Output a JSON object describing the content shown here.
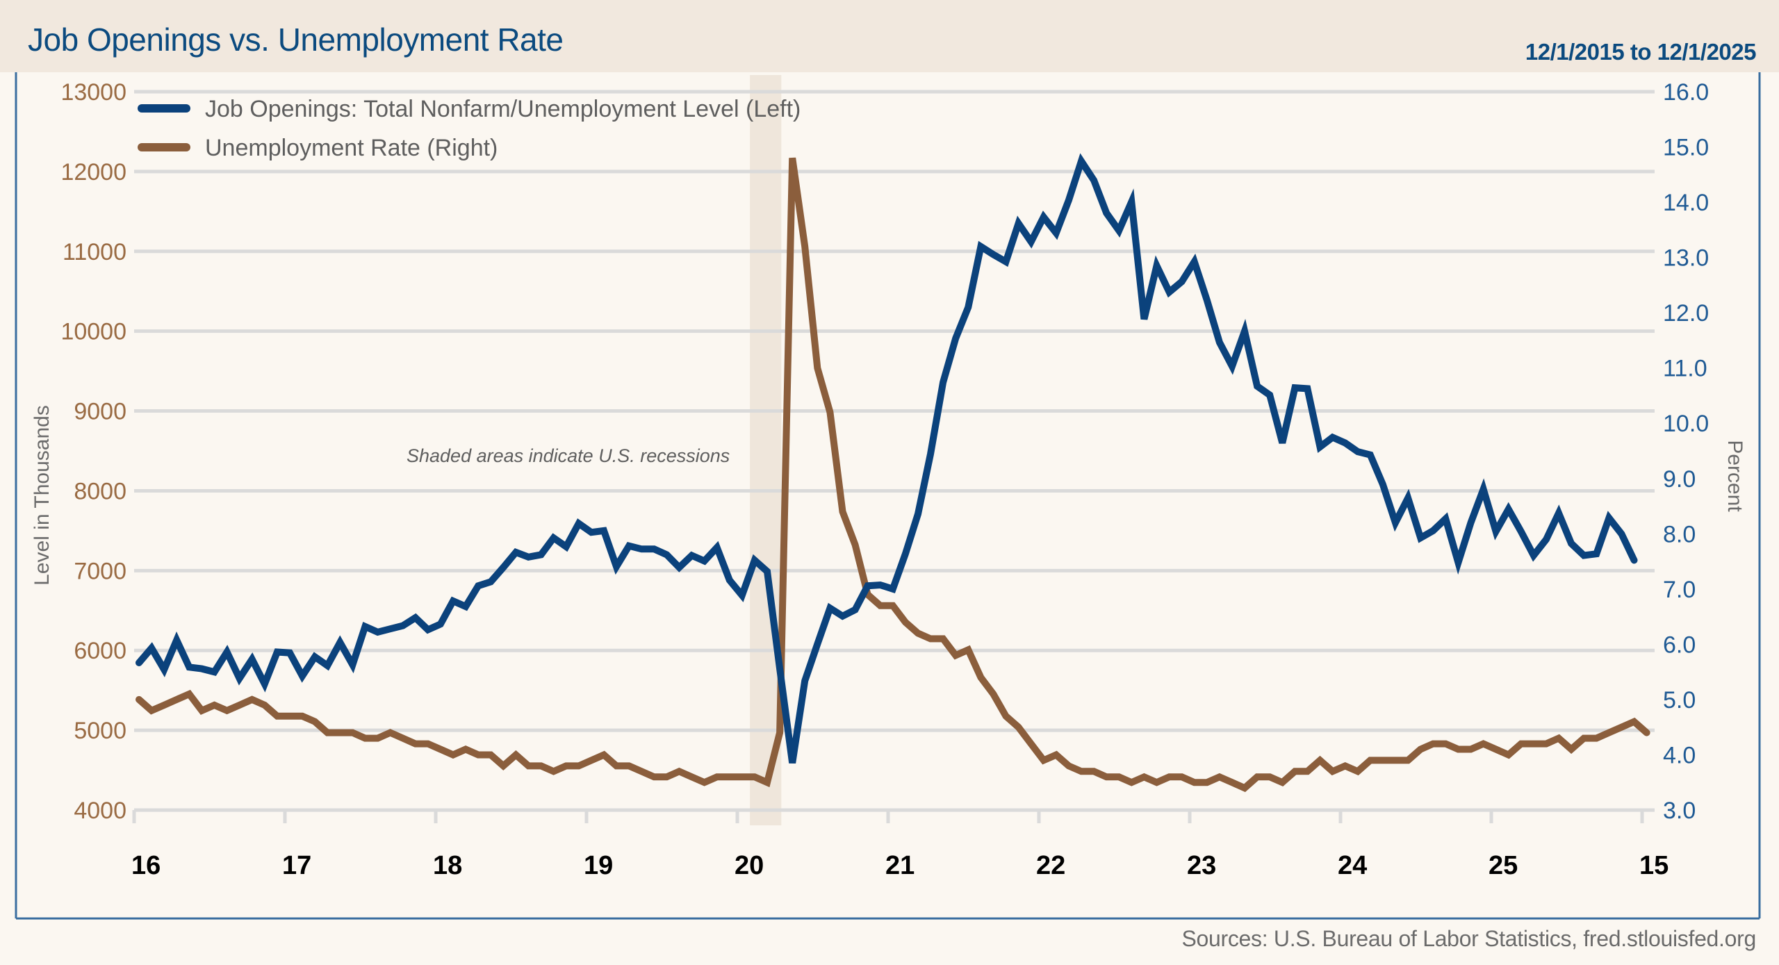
{
  "header": {
    "title": "Job Openings vs. Unemployment Rate",
    "date_range": "12/1/2015 to 12/1/2025"
  },
  "footer": {
    "sources": "Sources: U.S. Bureau of Labor Statistics, fred.stlouisfed.org"
  },
  "colors": {
    "job_openings": "#0B427C",
    "unemployment_rate": "#8B5E3C",
    "left_axis": "#9A6B43",
    "right_axis": "#1F5A94",
    "grid": "#DADADA",
    "recession": "#EFE6DB",
    "frame": "#3A6EA0"
  },
  "chart_data": {
    "type": "line",
    "title": "Job Openings vs. Unemployment Rate",
    "subtitle": "12/1/2015 to 12/1/2025",
    "ylabel_left": "Level in Thousands",
    "ylabel_right": "Percent",
    "ylim_left": [
      4000,
      13000
    ],
    "ylim_right": [
      3.0,
      16.0
    ],
    "yticks_left": [
      "4000",
      "5000",
      "6000",
      "7000",
      "8000",
      "9000",
      "10000",
      "11000",
      "12000",
      "13000"
    ],
    "yticks_right": [
      "3.0",
      "4.0",
      "5.0",
      "6.0",
      "7.0",
      "8.0",
      "9.0",
      "10.0",
      "11.0",
      "12.0",
      "13.0",
      "14.0",
      "15.0",
      "16.0"
    ],
    "xticks": [
      "16",
      "17",
      "18",
      "19",
      "20",
      "21",
      "22",
      "23",
      "24",
      "25",
      "15"
    ],
    "grid": true,
    "legend_position": "top-left",
    "annotation": "Shaded areas indicate U.S. recessions",
    "recessions": [
      {
        "start": "2020-02",
        "end": "2020-04"
      }
    ],
    "series": [
      {
        "name": "Job Openings: Total Nonfarm/Unemployment Level (Left)",
        "axis": "left",
        "start": "2015-12",
        "frequency": "monthly",
        "values": [
          5845,
          6030,
          5760,
          6130,
          5790,
          5770,
          5730,
          5980,
          5650,
          5890,
          5580,
          5980,
          5970,
          5680,
          5920,
          5810,
          6100,
          5820,
          6300,
          6230,
          6270,
          6310,
          6410,
          6260,
          6330,
          6620,
          6550,
          6810,
          6860,
          7040,
          7230,
          7170,
          7200,
          7410,
          7300,
          7590,
          7480,
          7500,
          7050,
          7310,
          7270,
          7270,
          7200,
          7040,
          7190,
          7120,
          7290,
          6880,
          6690,
          7130,
          6990,
          5770,
          4590,
          5620,
          6080,
          6530,
          6430,
          6510,
          6810,
          6820,
          6770,
          7210,
          7710,
          8460,
          9360,
          9910,
          10300,
          11060,
          10960,
          10870,
          11350,
          11120,
          11430,
          11230,
          11640,
          12130,
          11890,
          11480,
          11260,
          11620,
          10150,
          10820,
          10490,
          10620,
          10870,
          10390,
          9860,
          9560,
          10000,
          9310,
          9200,
          8600,
          9290,
          9280,
          8550,
          8670,
          8600,
          8490,
          8450,
          8080,
          7600,
          7910,
          7410,
          7500,
          7650,
          7100,
          7600,
          8020,
          7490,
          7770,
          7490,
          7190,
          7390,
          7720,
          7340,
          7190,
          7210,
          7660,
          7460,
          7130
        ]
      },
      {
        "name": "Unemployment Rate (Right)",
        "axis": "right",
        "start": "2015-12",
        "frequency": "monthly",
        "values": [
          5.0,
          4.8,
          4.9,
          5.0,
          5.1,
          4.8,
          4.9,
          4.8,
          4.9,
          5.0,
          4.9,
          4.7,
          4.7,
          4.7,
          4.6,
          4.4,
          4.4,
          4.4,
          4.3,
          4.3,
          4.4,
          4.3,
          4.2,
          4.2,
          4.1,
          4.0,
          4.1,
          4.0,
          4.0,
          3.8,
          4.0,
          3.8,
          3.8,
          3.7,
          3.8,
          3.8,
          3.9,
          4.0,
          3.8,
          3.8,
          3.7,
          3.6,
          3.6,
          3.7,
          3.6,
          3.5,
          3.6,
          3.6,
          3.6,
          3.6,
          3.5,
          4.4,
          14.8,
          13.2,
          11.0,
          10.2,
          8.4,
          7.8,
          6.9,
          6.7,
          6.7,
          6.4,
          6.2,
          6.1,
          6.1,
          5.8,
          5.9,
          5.4,
          5.1,
          4.7,
          4.5,
          4.2,
          3.9,
          4.0,
          3.8,
          3.7,
          3.7,
          3.6,
          3.6,
          3.5,
          3.6,
          3.5,
          3.6,
          3.6,
          3.5,
          3.5,
          3.6,
          3.5,
          3.4,
          3.6,
          3.6,
          3.5,
          3.7,
          3.7,
          3.9,
          3.7,
          3.8,
          3.7,
          3.9,
          3.9,
          3.9,
          3.9,
          4.1,
          4.2,
          4.2,
          4.1,
          4.1,
          4.2,
          4.1,
          4.0,
          4.2,
          4.2,
          4.2,
          4.3,
          4.1,
          4.3,
          4.3,
          4.4,
          4.5,
          4.6,
          4.4
        ]
      }
    ]
  }
}
